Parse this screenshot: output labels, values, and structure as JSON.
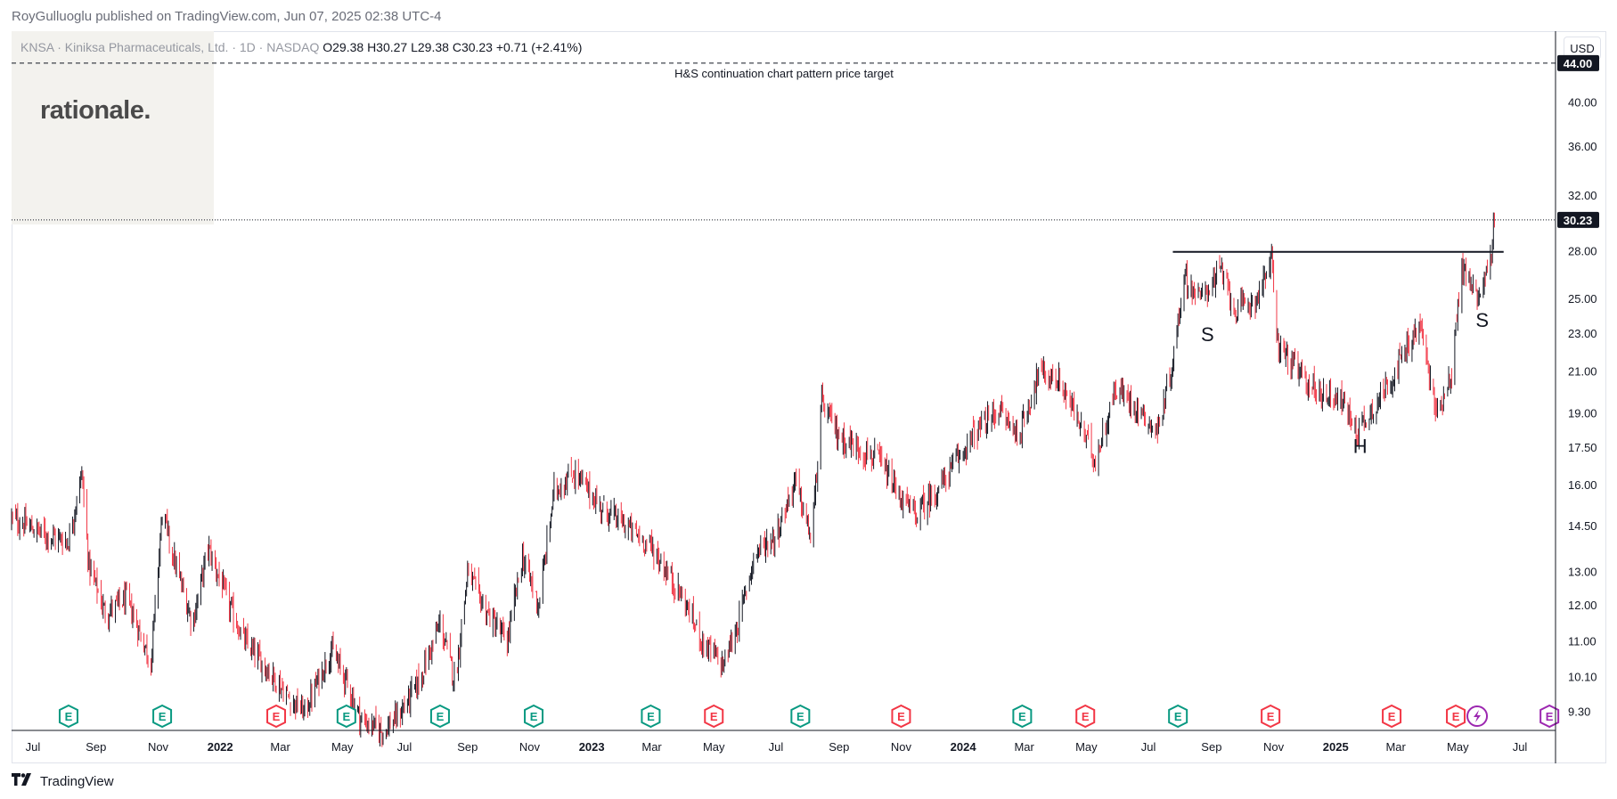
{
  "publisher": "RoyGulluoglu published on TradingView.com, Jun 07, 2025 02:38 UTC-4",
  "logo_text": "rationale.",
  "footer_brand": "TradingView",
  "currency": "USD",
  "legend": {
    "symbol": "KNSA · Kiniksa Pharmaceuticals, Ltd. · 1D · NASDAQ",
    "open": "O29.38",
    "high": "H30.27",
    "low": "L29.38",
    "close": "C30.23",
    "change": "+0.71 (+2.41%)"
  },
  "colors": {
    "up": "#131722",
    "down": "#f23645",
    "earnings_green": "#089981",
    "earnings_red": "#f23645",
    "dividend_purple": "#9c27b0"
  },
  "chart_data": {
    "type": "candlestick",
    "symbol": "KNSA",
    "interval": "1D",
    "y_scale": "log",
    "ylim": [
      8.9,
      47.5
    ],
    "y_ticks": [
      "9.30",
      "10.10",
      "11.00",
      "12.00",
      "13.00",
      "14.50",
      "16.00",
      "17.50",
      "19.00",
      "21.00",
      "23.00",
      "25.00",
      "28.00",
      "32.00",
      "36.00",
      "40.00"
    ],
    "y_tick_values": [
      9.3,
      10.1,
      11.0,
      12.0,
      13.0,
      14.5,
      16.0,
      17.5,
      19.0,
      21.0,
      23.0,
      25.0,
      28.0,
      32.0,
      36.0,
      40.0
    ],
    "x_range": [
      "2021-06-10",
      "2025-08-05"
    ],
    "x_ticks": [
      {
        "label": "Jul",
        "date": "2021-07-01"
      },
      {
        "label": "Sep",
        "date": "2021-09-01"
      },
      {
        "label": "Nov",
        "date": "2021-11-01"
      },
      {
        "label": "2022",
        "date": "2022-01-01",
        "bold": true
      },
      {
        "label": "Mar",
        "date": "2022-03-01"
      },
      {
        "label": "May",
        "date": "2022-05-01"
      },
      {
        "label": "Jul",
        "date": "2022-07-01"
      },
      {
        "label": "Sep",
        "date": "2022-09-01"
      },
      {
        "label": "Nov",
        "date": "2022-11-01"
      },
      {
        "label": "2023",
        "date": "2023-01-01",
        "bold": true
      },
      {
        "label": "Mar",
        "date": "2023-03-01"
      },
      {
        "label": "May",
        "date": "2023-05-01"
      },
      {
        "label": "Jul",
        "date": "2023-07-01"
      },
      {
        "label": "Sep",
        "date": "2023-09-01"
      },
      {
        "label": "Nov",
        "date": "2023-11-01"
      },
      {
        "label": "2024",
        "date": "2024-01-01",
        "bold": true
      },
      {
        "label": "Mar",
        "date": "2024-03-01"
      },
      {
        "label": "May",
        "date": "2024-05-01"
      },
      {
        "label": "Jul",
        "date": "2024-07-01"
      },
      {
        "label": "Sep",
        "date": "2024-09-01"
      },
      {
        "label": "Nov",
        "date": "2024-11-01"
      },
      {
        "label": "2025",
        "date": "2025-01-01",
        "bold": true
      },
      {
        "label": "Mar",
        "date": "2025-03-01"
      },
      {
        "label": "May",
        "date": "2025-05-01"
      },
      {
        "label": "Jul",
        "date": "2025-07-01"
      }
    ],
    "price_path": [
      {
        "date": "2021-06-10",
        "close": 14.8
      },
      {
        "date": "2021-07-15",
        "close": 14.2
      },
      {
        "date": "2021-08-05",
        "close": 14.0
      },
      {
        "date": "2021-08-18",
        "close": 16.5
      },
      {
        "date": "2021-08-25",
        "close": 13.2
      },
      {
        "date": "2021-09-10",
        "close": 11.8
      },
      {
        "date": "2021-10-01",
        "close": 12.2
      },
      {
        "date": "2021-10-25",
        "close": 10.5
      },
      {
        "date": "2021-11-05",
        "close": 15.0
      },
      {
        "date": "2021-11-20",
        "close": 13.0
      },
      {
        "date": "2021-12-05",
        "close": 11.5
      },
      {
        "date": "2021-12-20",
        "close": 13.8
      },
      {
        "date": "2022-01-10",
        "close": 12.0
      },
      {
        "date": "2022-01-25",
        "close": 11.0
      },
      {
        "date": "2022-02-20",
        "close": 10.2
      },
      {
        "date": "2022-03-10",
        "close": 9.6
      },
      {
        "date": "2022-03-25",
        "close": 9.3
      },
      {
        "date": "2022-04-20",
        "close": 10.8
      },
      {
        "date": "2022-05-05",
        "close": 10.0
      },
      {
        "date": "2022-05-20",
        "close": 9.1
      },
      {
        "date": "2022-06-10",
        "close": 8.9
      },
      {
        "date": "2022-06-25",
        "close": 9.2
      },
      {
        "date": "2022-07-15",
        "close": 10.0
      },
      {
        "date": "2022-08-05",
        "close": 11.5
      },
      {
        "date": "2022-08-20",
        "close": 10.0
      },
      {
        "date": "2022-09-01",
        "close": 13.0
      },
      {
        "date": "2022-09-20",
        "close": 11.8
      },
      {
        "date": "2022-10-10",
        "close": 11.0
      },
      {
        "date": "2022-10-25",
        "close": 13.5
      },
      {
        "date": "2022-11-10",
        "close": 12.0
      },
      {
        "date": "2022-11-25",
        "close": 15.8
      },
      {
        "date": "2022-12-15",
        "close": 16.5
      },
      {
        "date": "2023-01-10",
        "close": 15.2
      },
      {
        "date": "2023-02-05",
        "close": 14.5
      },
      {
        "date": "2023-03-01",
        "close": 13.8
      },
      {
        "date": "2023-04-01",
        "close": 12.2
      },
      {
        "date": "2023-04-20",
        "close": 11.0
      },
      {
        "date": "2023-05-10",
        "close": 10.4
      },
      {
        "date": "2023-05-25",
        "close": 11.5
      },
      {
        "date": "2023-06-10",
        "close": 13.6
      },
      {
        "date": "2023-07-01",
        "close": 14.2
      },
      {
        "date": "2023-07-20",
        "close": 16.2
      },
      {
        "date": "2023-08-05",
        "close": 14.0
      },
      {
        "date": "2023-08-15",
        "close": 19.5
      },
      {
        "date": "2023-09-01",
        "close": 18.0
      },
      {
        "date": "2023-09-20",
        "close": 17.5
      },
      {
        "date": "2023-10-10",
        "close": 17.0
      },
      {
        "date": "2023-10-30",
        "close": 15.6
      },
      {
        "date": "2023-11-15",
        "close": 14.9
      },
      {
        "date": "2023-12-10",
        "close": 16.0
      },
      {
        "date": "2024-01-10",
        "close": 18.0
      },
      {
        "date": "2024-02-05",
        "close": 19.2
      },
      {
        "date": "2024-02-25",
        "close": 18.0
      },
      {
        "date": "2024-03-15",
        "close": 21.0
      },
      {
        "date": "2024-04-05",
        "close": 20.5
      },
      {
        "date": "2024-04-25",
        "close": 18.5
      },
      {
        "date": "2024-05-10",
        "close": 17.0
      },
      {
        "date": "2024-05-30",
        "close": 20.2
      },
      {
        "date": "2024-06-20",
        "close": 19.3
      },
      {
        "date": "2024-07-10",
        "close": 18.2
      },
      {
        "date": "2024-07-25",
        "close": 21.5
      },
      {
        "date": "2024-08-05",
        "close": 26.5
      },
      {
        "date": "2024-08-20",
        "close": 25.0
      },
      {
        "date": "2024-09-10",
        "close": 26.8
      },
      {
        "date": "2024-09-25",
        "close": 24.3
      },
      {
        "date": "2024-10-15",
        "close": 25.0
      },
      {
        "date": "2024-10-30",
        "close": 27.5
      },
      {
        "date": "2024-11-05",
        "close": 22.5
      },
      {
        "date": "2024-11-25",
        "close": 21.0
      },
      {
        "date": "2024-12-15",
        "close": 20.0
      },
      {
        "date": "2025-01-05",
        "close": 19.8
      },
      {
        "date": "2025-01-22",
        "close": 18.2
      },
      {
        "date": "2025-02-10",
        "close": 19.5
      },
      {
        "date": "2025-03-05",
        "close": 21.5
      },
      {
        "date": "2025-03-25",
        "close": 23.5
      },
      {
        "date": "2025-04-10",
        "close": 19.0
      },
      {
        "date": "2025-04-25",
        "close": 21.0
      },
      {
        "date": "2025-05-05",
        "close": 27.0
      },
      {
        "date": "2025-05-20",
        "close": 25.2
      },
      {
        "date": "2025-06-01",
        "close": 27.0
      },
      {
        "date": "2025-06-06",
        "close": 30.23
      }
    ],
    "neckline": {
      "date_start": "2024-07-25",
      "date_end": "2025-06-15",
      "price": 28.0
    },
    "target_line": {
      "price": 44.0,
      "label": "H&S continuation chart pattern price target"
    },
    "last_price": {
      "price": 30.23,
      "label": "30.23"
    },
    "target_badge": "44.00",
    "pattern_labels": [
      {
        "text": "S",
        "date": "2024-08-28",
        "price": 22.6
      },
      {
        "text": "H",
        "date": "2025-01-25",
        "price": 17.3
      },
      {
        "text": "S",
        "date": "2025-05-25",
        "price": 23.4
      }
    ],
    "events": [
      {
        "type": "earnings",
        "color": "green",
        "date": "2021-08-05"
      },
      {
        "type": "earnings",
        "color": "green",
        "date": "2021-11-05"
      },
      {
        "type": "earnings",
        "color": "red",
        "date": "2022-02-25"
      },
      {
        "type": "earnings",
        "color": "green",
        "date": "2022-05-05"
      },
      {
        "type": "earnings",
        "color": "green",
        "date": "2022-08-05"
      },
      {
        "type": "earnings",
        "color": "green",
        "date": "2022-11-05"
      },
      {
        "type": "earnings",
        "color": "green",
        "date": "2023-02-28"
      },
      {
        "type": "earnings",
        "color": "red",
        "date": "2023-05-01"
      },
      {
        "type": "earnings",
        "color": "green",
        "date": "2023-07-25"
      },
      {
        "type": "earnings",
        "color": "red",
        "date": "2023-11-01"
      },
      {
        "type": "earnings",
        "color": "green",
        "date": "2024-02-28"
      },
      {
        "type": "earnings",
        "color": "red",
        "date": "2024-04-30"
      },
      {
        "type": "earnings",
        "color": "green",
        "date": "2024-07-30"
      },
      {
        "type": "earnings",
        "color": "red",
        "date": "2024-10-29"
      },
      {
        "type": "earnings",
        "color": "red",
        "date": "2025-02-25"
      },
      {
        "type": "earnings",
        "color": "red",
        "date": "2025-04-29"
      },
      {
        "type": "split",
        "color": "purple",
        "date": "2025-05-20"
      },
      {
        "type": "earnings",
        "color": "purple",
        "date": "2025-07-30"
      }
    ],
    "event_glyph": "E"
  }
}
